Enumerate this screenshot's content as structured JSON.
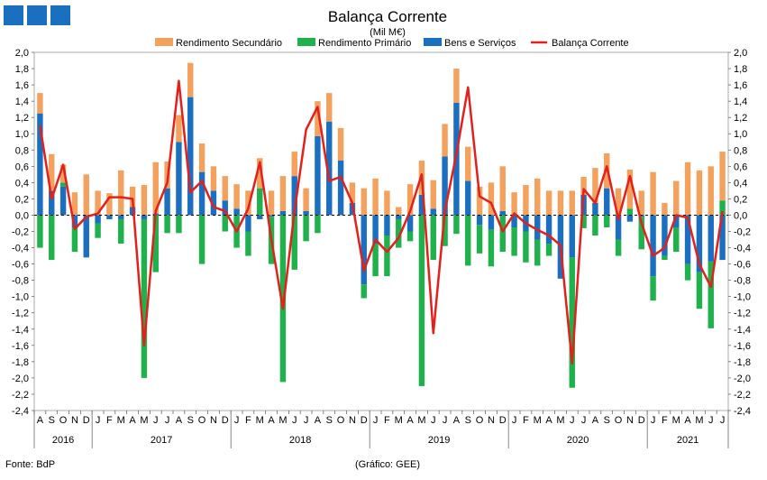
{
  "chart_data": {
    "type": "bar+line",
    "title": "Balança Corrente",
    "subtitle": "(Mil M€)",
    "source": "Fonte: BdP",
    "credit": "(Gráfico: GEE)",
    "ylim": [
      -2.4,
      2.0
    ],
    "ytick_step": 0.2,
    "colors": {
      "rendimento_secundario": "#f4a15d",
      "rendimento_primario": "#1fb14b",
      "bens_servicos": "#1b6fc1",
      "balanca_corrente": "#e3201b",
      "logo": "#1b6fc1"
    },
    "legend": [
      {
        "key": "rendimento_secundario",
        "label": "Rendimento Secundário"
      },
      {
        "key": "rendimento_primario",
        "label": "Rendimento Primário"
      },
      {
        "key": "bens_servicos",
        "label": "Bens e Serviços"
      },
      {
        "key": "balanca_corrente",
        "label": "Balança Corrente"
      }
    ],
    "months": [
      "A",
      "S",
      "O",
      "N",
      "D",
      "J",
      "F",
      "M",
      "A",
      "M",
      "J",
      "J",
      "A",
      "S",
      "O",
      "N",
      "D",
      "J",
      "F",
      "M",
      "A",
      "M",
      "J",
      "J",
      "A",
      "S",
      "O",
      "N",
      "D",
      "J",
      "F",
      "M",
      "A",
      "M",
      "J",
      "J",
      "A",
      "S",
      "O",
      "N",
      "D",
      "J",
      "F",
      "M",
      "A",
      "M",
      "J",
      "J",
      "A",
      "S",
      "O",
      "N",
      "D",
      "J",
      "F",
      "M",
      "A",
      "M",
      "J",
      "J"
    ],
    "years": [
      {
        "label": "2016",
        "start": 0,
        "end": 4
      },
      {
        "label": "2017",
        "start": 5,
        "end": 16
      },
      {
        "label": "2018",
        "start": 17,
        "end": 28
      },
      {
        "label": "2019",
        "start": 29,
        "end": 40
      },
      {
        "label": "2020",
        "start": 41,
        "end": 52
      },
      {
        "label": "2021",
        "start": 53,
        "end": 59
      }
    ],
    "series": [
      {
        "key": "bens_servicos",
        "name": "Bens e Serviços",
        "values": [
          1.25,
          0.3,
          0.35,
          -0.15,
          -0.52,
          -0.1,
          -0.05,
          -0.05,
          0.1,
          -0.05,
          0.02,
          0.33,
          0.9,
          1.45,
          0.53,
          0.3,
          0.18,
          0.08,
          -0.2,
          -0.05,
          -0.02,
          0.05,
          0.48,
          0.05,
          0.97,
          1.15,
          0.67,
          0.15,
          -0.85,
          -0.35,
          -0.25,
          -0.05,
          -0.2,
          0.25,
          0.08,
          0.72,
          1.38,
          0.42,
          -0.12,
          -0.18,
          0.05,
          -0.15,
          -0.2,
          -0.3,
          -0.35,
          -0.78,
          -0.52,
          0.25,
          0.15,
          0.33,
          -0.3,
          -0.08,
          -0.02,
          -0.75,
          -0.5,
          -0.15,
          -0.6,
          -0.7,
          -0.57,
          -0.55
        ]
      },
      {
        "key": "rendimento_primario",
        "name": "Rendimento Primário",
        "values": [
          -0.4,
          -0.55,
          0.05,
          -0.3,
          0,
          -0.18,
          0,
          -0.3,
          0,
          -1.95,
          -0.7,
          -0.22,
          -0.22,
          0,
          -0.6,
          0,
          -0.2,
          -0.4,
          -0.3,
          0.33,
          -0.58,
          -2.05,
          -0.67,
          -0.32,
          -0.22,
          0,
          0,
          0,
          -0.17,
          -0.4,
          -0.5,
          -0.35,
          -0.12,
          -2.1,
          -0.55,
          -0.38,
          -0.23,
          -0.62,
          -0.35,
          -0.45,
          -0.45,
          -0.35,
          -0.38,
          -0.32,
          -0.15,
          0,
          -1.6,
          -0.16,
          -0.25,
          -0.15,
          -0.2,
          0.08,
          -0.4,
          -0.3,
          -0.05,
          -0.3,
          -0.2,
          -0.45,
          -0.82,
          0.18
        ]
      },
      {
        "key": "rendimento_secundario",
        "name": "Rendimento Secundário",
        "values": [
          0.25,
          0.45,
          0.22,
          0.28,
          0.5,
          0.3,
          0.27,
          0.55,
          0.25,
          0.37,
          0.63,
          0.33,
          0.33,
          0.42,
          0.35,
          0.3,
          0.3,
          0.3,
          0.3,
          0.37,
          0.3,
          0.43,
          0.3,
          0.28,
          0.43,
          0.35,
          0.4,
          0.25,
          0.33,
          0.45,
          0.3,
          0.1,
          0.38,
          0.42,
          0.35,
          0.4,
          0.42,
          0.42,
          0.35,
          0.4,
          0.55,
          0.28,
          0.37,
          0.45,
          0.3,
          0.3,
          0.3,
          0.22,
          0.43,
          0.43,
          0.33,
          0.48,
          0.3,
          0.53,
          0.15,
          0.42,
          0.65,
          0.55,
          0.6,
          0.6
        ]
      },
      {
        "key": "balanca_corrente",
        "name": "Balança Corrente",
        "type": "line",
        "values": [
          1.1,
          0.2,
          0.62,
          -0.17,
          -0.02,
          0.02,
          0.22,
          0.22,
          0.2,
          -1.6,
          0.05,
          0.4,
          1.65,
          0.28,
          0.42,
          0.1,
          0.05,
          -0.2,
          0.08,
          0.65,
          -0.3,
          -1.15,
          0.05,
          1.05,
          1.33,
          0.42,
          0.47,
          0.15,
          -0.68,
          -0.3,
          -0.45,
          -0.28,
          0.05,
          0.5,
          -1.45,
          0.05,
          0.75,
          1.57,
          0.23,
          0.15,
          -0.2,
          0.02,
          -0.1,
          -0.18,
          -0.25,
          -0.37,
          -1.82,
          0.32,
          0.15,
          0.6,
          -0.05,
          0.48,
          -0.1,
          -0.5,
          -0.4,
          0.0,
          -0.03,
          -0.6,
          -0.88,
          0.05
        ]
      }
    ]
  }
}
